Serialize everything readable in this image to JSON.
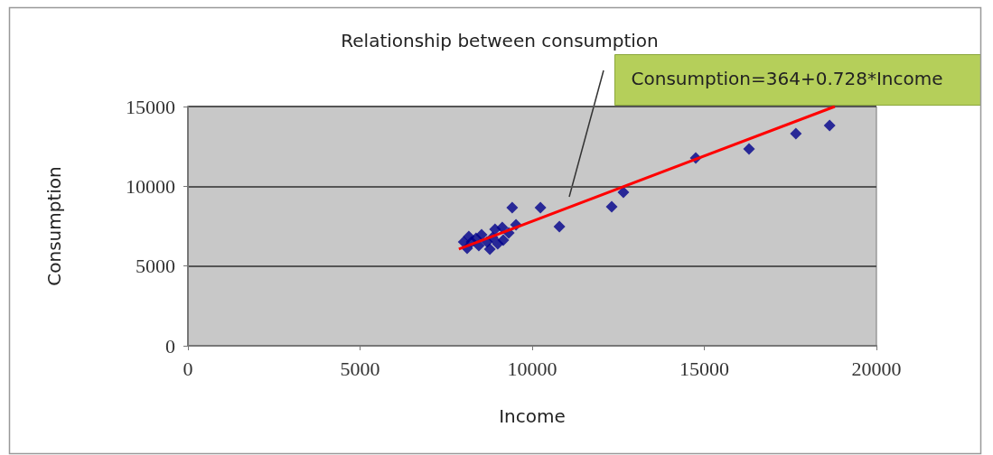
{
  "chart_data": {
    "type": "scatter",
    "title": "Relationship between consumption",
    "xlabel": "Income",
    "ylabel": "Consumption",
    "annotations": [
      "Consumption=364+0.728*Income"
    ],
    "xlim": [
      0,
      20000
    ],
    "xticks": [
      0,
      5000,
      10000,
      15000,
      20000
    ],
    "ylim": [
      0,
      15000
    ],
    "yticks": [
      0,
      5000,
      10000,
      15000
    ],
    "grid": "y",
    "marker": "diamond",
    "series": [
      {
        "color": "#00008b",
        "x": [
          8010,
          8160,
          8370,
          8530,
          8690,
          8850,
          9000,
          9160,
          9320,
          9130,
          8920,
          8110,
          8450,
          8770,
          8240,
          9420,
          10240,
          9530,
          10790,
          12310,
          12650,
          14750,
          16300,
          17660,
          18640
        ],
        "values": [
          6510,
          6850,
          6730,
          6960,
          6510,
          6790,
          6400,
          6620,
          7070,
          7410,
          7300,
          6110,
          6280,
          6060,
          6510,
          8660,
          8660,
          7580,
          7470,
          8720,
          9620,
          11770,
          12340,
          13300,
          13810
        ]
      },
      {
        "type": "line",
        "color": "#ff0000",
        "marker": "none",
        "x": [
          7870,
          18790
        ],
        "values": [
          6060,
          15000
        ]
      }
    ]
  }
}
